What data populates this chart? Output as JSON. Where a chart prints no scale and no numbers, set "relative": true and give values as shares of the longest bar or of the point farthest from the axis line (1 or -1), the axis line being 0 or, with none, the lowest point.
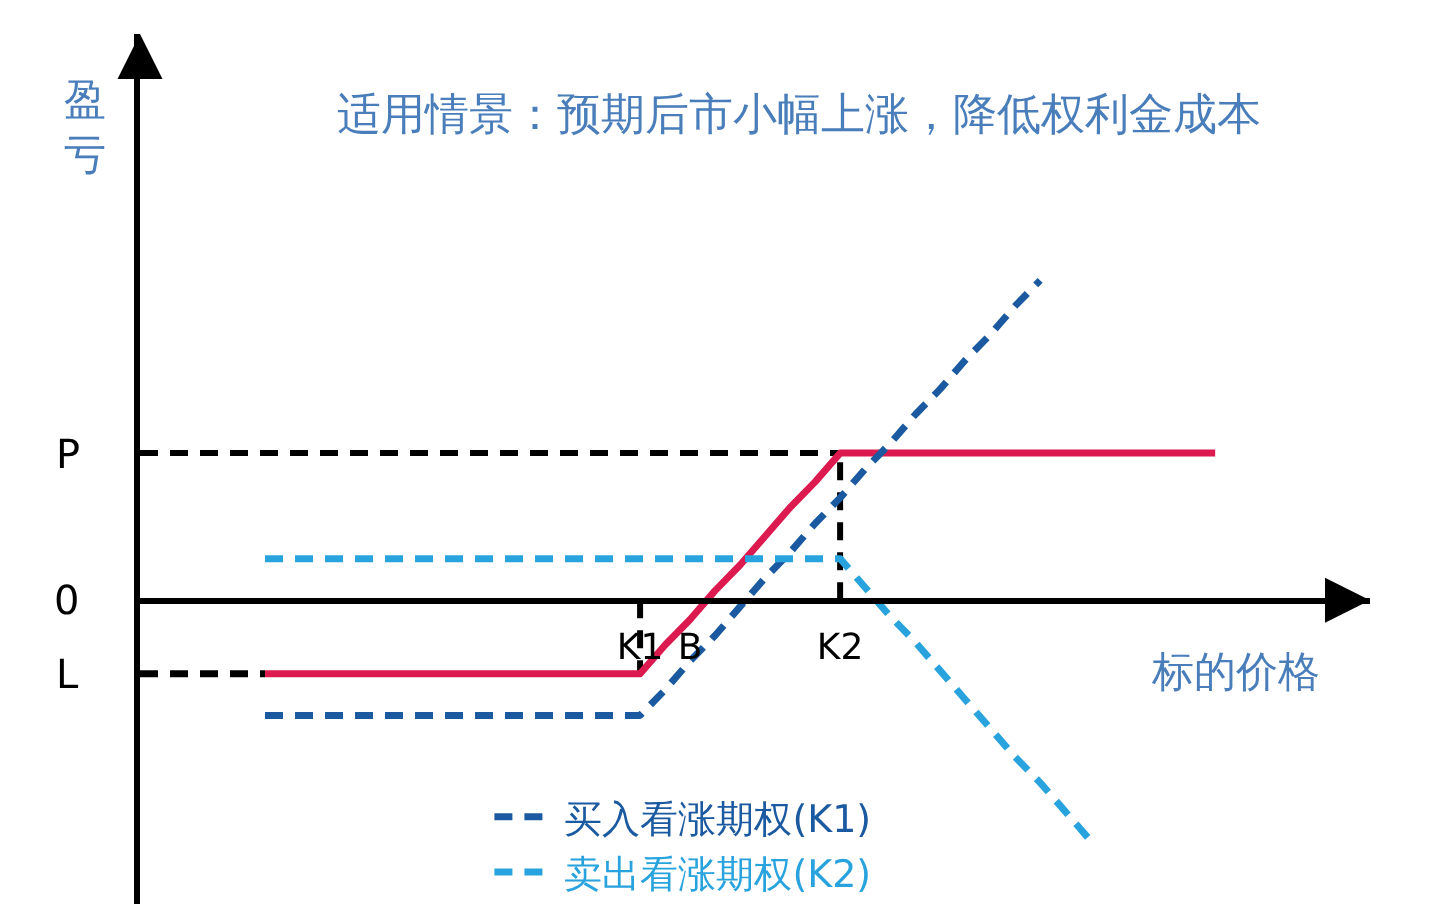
{
  "chart_data": {
    "type": "line",
    "title": "适用情景：预期后市小幅上涨，降低权利金成本",
    "xlabel": "标的价格",
    "ylabel": "盈亏",
    "relative": true,
    "legend": "bottom",
    "categories": [
      null,
      null,
      null,
      null,
      null,
      null,
      null,
      null,
      null,
      null,
      null,
      null,
      null,
      null,
      null,
      null,
      null,
      null,
      null,
      null,
      "K1",
      null,
      "B",
      null,
      null,
      null,
      null,
      null,
      "K2",
      null,
      null,
      null,
      null,
      null,
      null,
      null,
      null,
      null,
      null,
      null,
      null,
      null,
      null,
      null
    ],
    "series": [
      {
        "color": "#dc1a4f",
        "line_style": "solid",
        "values": [
          null,
          null,
          null,
          null,
          null,
          -0.23,
          -0.23,
          -0.23,
          -0.23,
          -0.23,
          -0.23,
          -0.23,
          -0.23,
          -0.23,
          -0.23,
          -0.23,
          -0.23,
          -0.23,
          -0.23,
          -0.23,
          -0.23,
          -0.14,
          -0.06,
          0.03,
          0.11,
          0.2,
          0.29,
          0.37,
          0.46,
          0.46,
          0.46,
          0.46,
          0.46,
          0.46,
          0.46,
          0.46,
          0.46,
          0.46,
          0.46,
          0.46,
          0.46,
          0.46,
          0.46,
          0.46
        ]
      },
      {
        "name": "买入看涨期权(K1)",
        "color": "#1b5aa0",
        "line_style": "dashed",
        "values": [
          null,
          null,
          null,
          null,
          null,
          -0.36,
          -0.36,
          -0.36,
          -0.36,
          -0.36,
          -0.36,
          -0.36,
          -0.36,
          -0.36,
          -0.36,
          -0.36,
          -0.36,
          -0.36,
          -0.36,
          -0.36,
          -0.36,
          -0.28,
          -0.19,
          -0.11,
          -0.02,
          0.07,
          0.15,
          0.24,
          0.32,
          0.41,
          0.49,
          0.58,
          0.66,
          0.75,
          0.83,
          0.92,
          1,
          null,
          null,
          null,
          null,
          null,
          null,
          null
        ]
      },
      {
        "name": "卖出看涨期权(K2)",
        "color": "#29a3dd",
        "line_style": "dashed",
        "values": [
          null,
          null,
          null,
          null,
          null,
          0.13,
          0.13,
          0.13,
          0.13,
          0.13,
          0.13,
          0.13,
          0.13,
          0.13,
          0.13,
          0.13,
          0.13,
          0.13,
          0.13,
          0.13,
          0.13,
          0.13,
          0.13,
          0.13,
          0.13,
          0.13,
          0.13,
          0.13,
          0.13,
          0.04,
          -0.05,
          -0.13,
          -0.22,
          -0.31,
          -0.4,
          -0.49,
          -0.57,
          -0.66,
          -0.75,
          null,
          null,
          null,
          null,
          null
        ]
      },
      {
        "color": "#000000",
        "line_style": "dashed",
        "values": [
          -0.23,
          -0.23,
          -0.23,
          -0.23,
          -0.23,
          -0.23,
          null,
          null,
          null,
          null,
          null,
          null,
          null,
          null,
          null,
          null,
          null,
          null,
          null,
          null,
          null,
          null,
          null,
          null,
          null,
          null,
          null,
          null,
          null,
          null,
          null,
          null,
          null,
          null,
          null,
          null,
          null,
          null,
          null,
          null,
          null,
          null,
          null,
          null
        ]
      }
    ],
    "ref_lines": [
      {
        "axis": "y",
        "value": 0.46,
        "label": "P",
        "color": "#000000",
        "line_style": "dashed"
      },
      {
        "axis": "x",
        "value": "K1",
        "color": "#000000",
        "line_style": "dashed"
      },
      {
        "axis": "x",
        "value": "K2",
        "color": "#000000",
        "line_style": "dashed"
      }
    ],
    "annotations": [
      "0",
      "L"
    ]
  }
}
